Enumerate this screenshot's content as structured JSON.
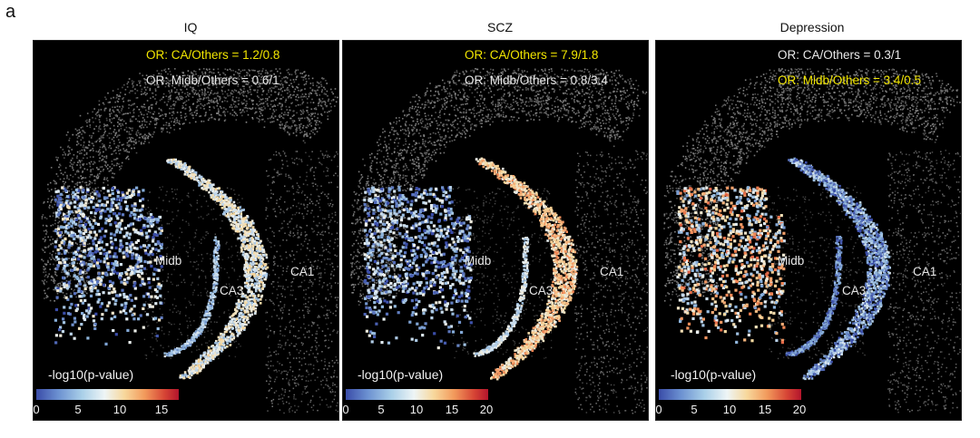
{
  "figure_label": "a",
  "colorbar_title": "-log10(p-value)",
  "regions": {
    "midb": "Midb",
    "ca3": "CA3",
    "ca1": "CA1"
  },
  "colors": {
    "highlight": "#f2e600",
    "normal": "#e8e8e8",
    "background": "#000000",
    "colormap": [
      "#3a4ca8",
      "#a9cfe8",
      "#eef5f6",
      "#f7d79b",
      "#f29a5c",
      "#b3142c"
    ]
  },
  "panels": [
    {
      "title": "IQ",
      "or_ca": {
        "text": "OR: CA/Others = 1.2/0.8",
        "highlighted": true
      },
      "or_midb": {
        "text": "OR: Midb/Others = 0.6/1",
        "highlighted": false
      },
      "ticks": [
        "0",
        "5",
        "10",
        "15"
      ],
      "ticks_values": [
        0,
        5,
        10,
        15
      ],
      "max": 17
    },
    {
      "title": "SCZ",
      "or_ca": {
        "text": "OR: CA/Others = 7.9/1.8",
        "highlighted": true
      },
      "or_midb": {
        "text": "OR: Midb/Others = 0.8/3.4",
        "highlighted": false
      },
      "ticks": [
        "0",
        "5",
        "10",
        "15",
        "20"
      ],
      "ticks_values": [
        0,
        5,
        10,
        15,
        20
      ],
      "max": 20
    },
    {
      "title": "Depression",
      "or_ca": {
        "text": "OR: CA/Others = 0.3/1",
        "highlighted": false
      },
      "or_midb": {
        "text": "OR: Midb/Others = 3.4/0.5",
        "highlighted": true
      },
      "ticks": [
        "0",
        "5",
        "10",
        "15",
        "20"
      ],
      "ticks_values": [
        0,
        5,
        10,
        15,
        20
      ],
      "max": 20
    }
  ]
}
